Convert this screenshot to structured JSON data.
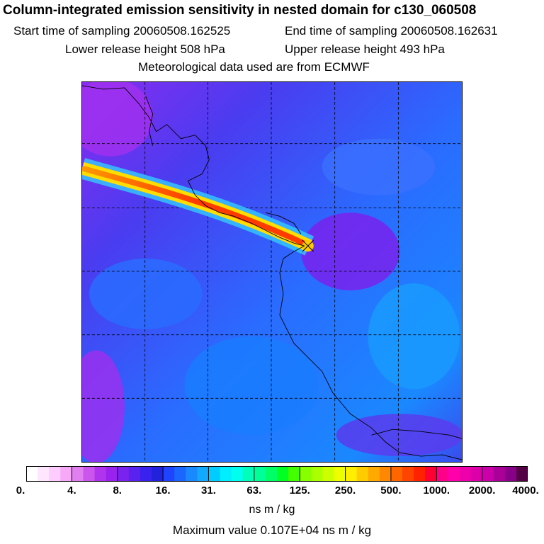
{
  "header": {
    "title": "Column-integrated emission sensitivity in nested domain for c130_060508",
    "start_label": "Start time of sampling 20060508.162525",
    "end_label": "End time of sampling 20060508.162631",
    "lower_label": "Lower release height  508 hPa",
    "upper_label": "Upper release height  493 hPa",
    "met_label": "Meteorological data used are from ECMWF"
  },
  "colors": {
    "background_field": "#3355ee",
    "plume_core": "#ff3b00"
  },
  "colorbar": {
    "tick_labels": [
      "0.",
      "4.",
      "8.",
      "16.",
      "31.",
      "63.",
      "125.",
      "250.",
      "500.",
      "1000.",
      "2000.",
      "4000."
    ],
    "colors": [
      "#ffffff",
      "#ffe6ff",
      "#ffccff",
      "#f7a8f7",
      "#e080f0",
      "#cc55ee",
      "#b033ee",
      "#9a22ee",
      "#7a22ee",
      "#5a22ee",
      "#3a22ee",
      "#2222dd",
      "#1e44ff",
      "#1a66ff",
      "#1a88ff",
      "#11aaff",
      "#00ccff",
      "#00eeff",
      "#00ffee",
      "#00ffbb",
      "#00ff99",
      "#00ff66",
      "#00ff22",
      "#44ff00",
      "#88ff00",
      "#aaff00",
      "#ccff00",
      "#eeff00",
      "#ffee00",
      "#ffcc00",
      "#ffaa00",
      "#ff8800",
      "#ff6600",
      "#ff4400",
      "#ff2200",
      "#ff0033",
      "#ff0088",
      "#ff00aa",
      "#ee00aa",
      "#dd00aa",
      "#cc00aa",
      "#aa0099",
      "#880088",
      "#550044"
    ],
    "units": "ns m / kg"
  },
  "footer": {
    "max_value": "Maximum value  0.107E+04 ns m / kg"
  }
}
